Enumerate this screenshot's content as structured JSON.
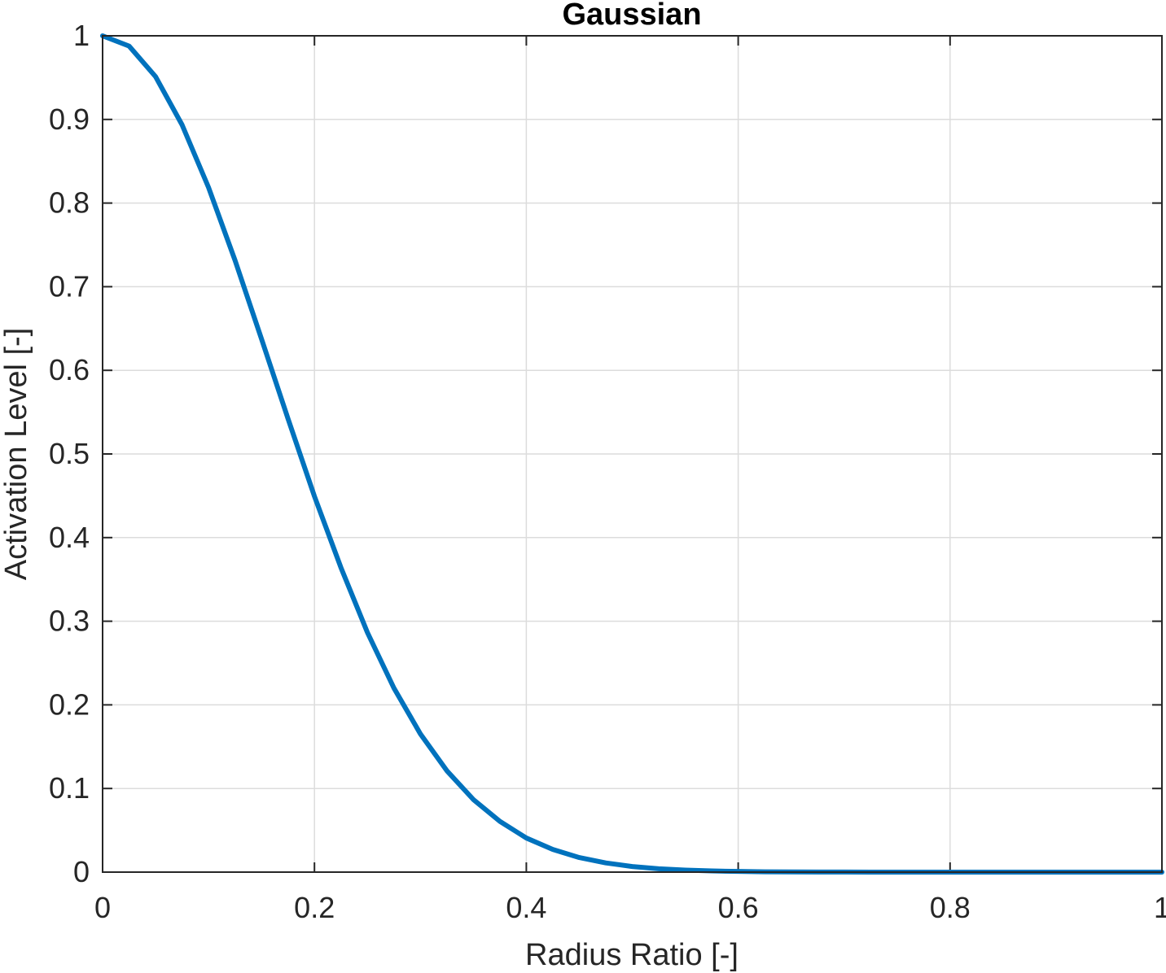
{
  "chart_data": {
    "type": "line",
    "title": "Gaussian",
    "xlabel": "Radius Ratio [-]",
    "ylabel": "Activation Level [-]",
    "xlim": [
      0,
      1
    ],
    "ylim": [
      0,
      1
    ],
    "grid": true,
    "xticks": [
      0,
      0.2,
      0.4,
      0.6,
      0.8,
      1
    ],
    "xtick_labels": [
      "0",
      "0.2",
      "0.4",
      "0.6",
      "0.8",
      "1"
    ],
    "yticks": [
      0,
      0.1,
      0.2,
      0.3,
      0.4,
      0.5,
      0.6,
      0.7,
      0.8,
      0.9,
      1
    ],
    "ytick_labels": [
      "0",
      "0.1",
      "0.2",
      "0.3",
      "0.4",
      "0.5",
      "0.6",
      "0.7",
      "0.8",
      "0.9",
      "1"
    ],
    "series": [
      {
        "x": [
          0,
          0.025,
          0.05,
          0.075,
          0.1,
          0.125,
          0.15,
          0.175,
          0.2,
          0.225,
          0.25,
          0.275,
          0.3,
          0.325,
          0.35,
          0.375,
          0.4,
          0.425,
          0.45,
          0.475,
          0.5,
          0.525,
          0.55,
          0.575,
          0.6,
          0.625,
          0.65,
          0.675,
          0.7,
          0.725,
          0.75,
          0.775,
          0.8,
          0.825,
          0.85,
          0.875,
          0.9,
          0.925,
          0.95,
          0.975,
          1
        ],
        "values": [
          1,
          0.9877,
          0.9512,
          0.8936,
          0.8187,
          0.7316,
          0.6376,
          0.5423,
          0.4493,
          0.3641,
          0.2865,
          0.2201,
          0.1653,
          0.1212,
          0.0868,
          0.0607,
          0.0408,
          0.0271,
          0.0174,
          0.011,
          0.0067,
          0.004,
          0.0024,
          0.0014,
          0.0008,
          0.0004,
          0.0002,
          0.0001,
          0.0001,
          0,
          0,
          0,
          0,
          0,
          0,
          0,
          0,
          0,
          0,
          0,
          0
        ]
      }
    ],
    "line_color": "#0072BD"
  }
}
